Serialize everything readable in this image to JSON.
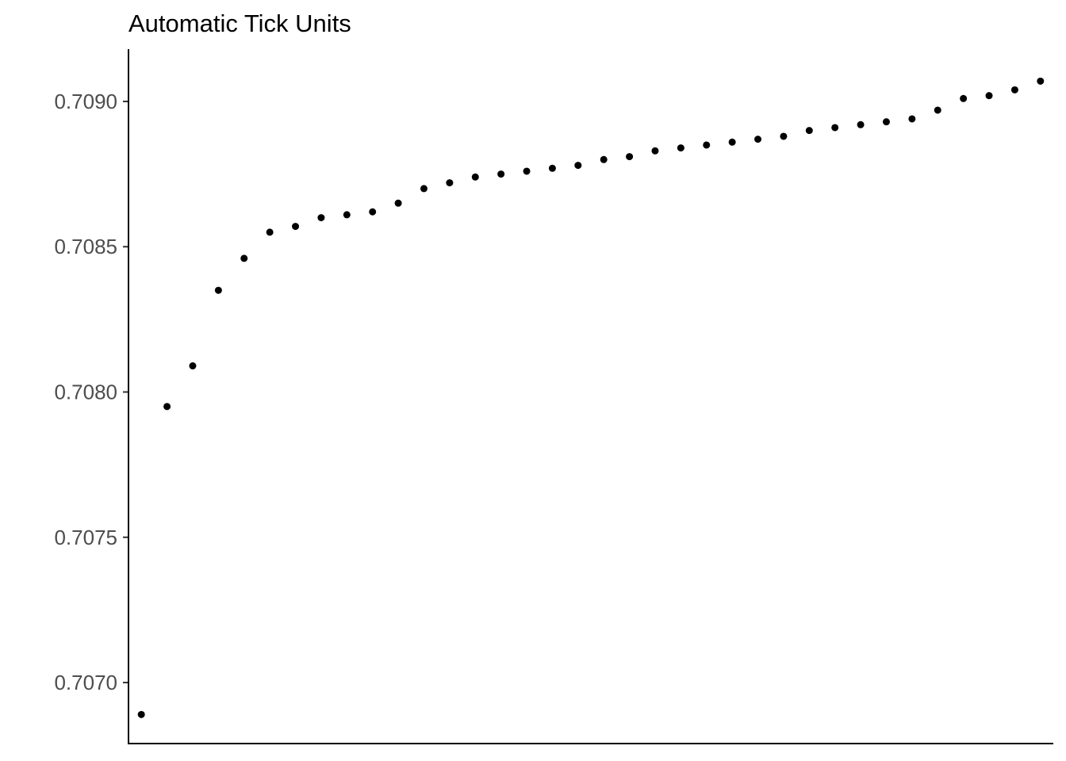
{
  "chart_data": {
    "type": "scatter",
    "title": "Automatic Tick Units",
    "xlabel": "",
    "ylabel": "",
    "y_ticks": [
      "0.7070",
      "0.7075",
      "0.7080",
      "0.7085",
      "0.7090"
    ],
    "y_tick_values": [
      0.707,
      0.7075,
      0.708,
      0.7085,
      0.709
    ],
    "x_ticks_shown": false,
    "xlim": [
      0.5,
      36.5
    ],
    "ylim": [
      0.70679,
      0.70918
    ],
    "grid": false,
    "point_color": "#000000",
    "axis_color": "#000000",
    "series": [
      {
        "x": [
          1,
          2,
          3,
          4,
          5,
          6,
          7,
          8,
          9,
          10,
          11,
          12,
          13,
          14,
          15,
          16,
          17,
          18,
          19,
          20,
          21,
          22,
          23,
          24,
          25,
          26,
          27,
          28,
          29,
          30,
          31,
          32,
          33,
          34,
          35,
          36
        ],
        "values": [
          0.70689,
          0.70795,
          0.70809,
          0.70835,
          0.70846,
          0.70855,
          0.70857,
          0.7086,
          0.70861,
          0.70862,
          0.70865,
          0.7087,
          0.70872,
          0.70874,
          0.70875,
          0.70876,
          0.70877,
          0.70878,
          0.7088,
          0.70881,
          0.70883,
          0.70884,
          0.70885,
          0.70886,
          0.70887,
          0.70888,
          0.7089,
          0.70891,
          0.70892,
          0.70893,
          0.70894,
          0.70897,
          0.70901,
          0.70902,
          0.70904,
          0.70907
        ]
      }
    ]
  }
}
